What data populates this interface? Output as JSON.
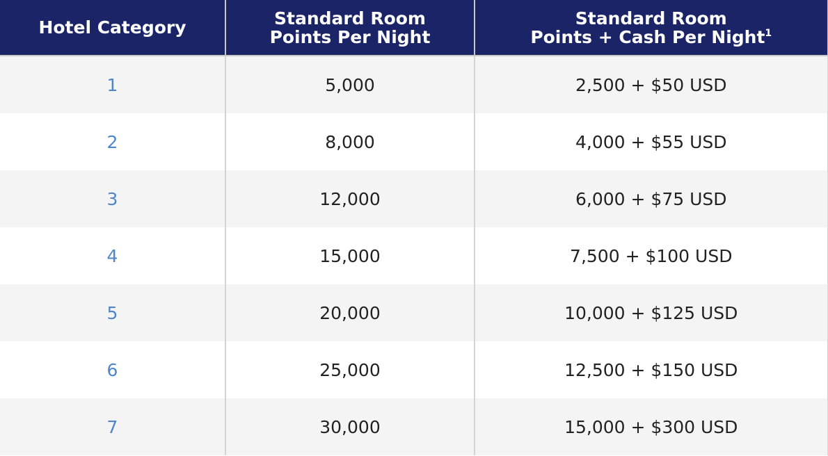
{
  "table": {
    "headers": [
      {
        "line1": "Hotel Category",
        "line2": "",
        "sup": ""
      },
      {
        "line1": "Standard Room",
        "line2": "Points Per Night",
        "sup": ""
      },
      {
        "line1": "Standard Room",
        "line2": "Points + Cash Per Night",
        "sup": "1"
      }
    ],
    "rows": [
      {
        "category": "1",
        "points": "5,000",
        "points_cash": "2,500 + $50 USD"
      },
      {
        "category": "2",
        "points": "8,000",
        "points_cash": "4,000 + $55 USD"
      },
      {
        "category": "3",
        "points": "12,000",
        "points_cash": "6,000 + $75 USD"
      },
      {
        "category": "4",
        "points": "15,000",
        "points_cash": "7,500 + $100 USD"
      },
      {
        "category": "5",
        "points": "20,000",
        "points_cash": "10,000 + $125 USD"
      },
      {
        "category": "6",
        "points": "25,000",
        "points_cash": "12,500 + $150 USD"
      },
      {
        "category": "7",
        "points": "30,000",
        "points_cash": "15,000 + $300 USD"
      }
    ]
  },
  "colors": {
    "header_bg": "#1b2466",
    "category_link": "#4f86c9",
    "row_alt": "#f4f4f4"
  }
}
